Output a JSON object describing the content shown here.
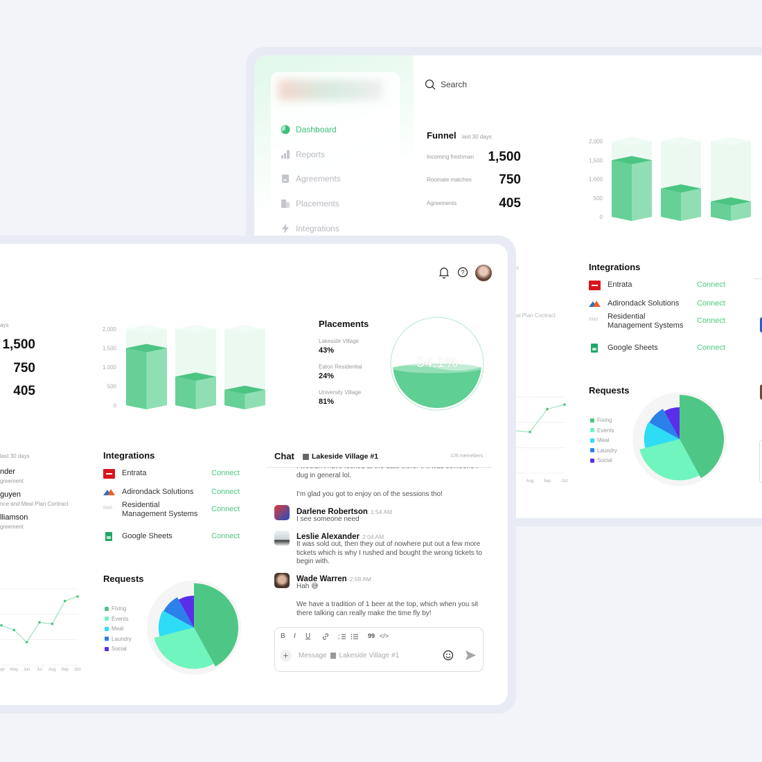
{
  "sidebar": {
    "items": [
      {
        "label": "Dashboard",
        "active": true
      },
      {
        "label": "Reports"
      },
      {
        "label": "Agreements"
      },
      {
        "label": "Placements"
      },
      {
        "label": "Integrations"
      }
    ]
  },
  "search": {
    "placeholder": "Search"
  },
  "funnel": {
    "title": "Funnel",
    "subtitle": "last 30 days",
    "subtitle_fragment": "ays",
    "rows": [
      {
        "label": "Incoming freshman",
        "value": "1,500"
      },
      {
        "label": "Roomate matches",
        "value": "750"
      },
      {
        "label": "Agreements",
        "value": "405"
      }
    ]
  },
  "recent": {
    "subtitle_fragment": "last 30 days",
    "rows": [
      {
        "name_fragment": "nder",
        "detail_fragment": "greement"
      },
      {
        "name_fragment": "guyen",
        "detail_fragment": "nce and Meal Plan Contract"
      },
      {
        "name_fragment": "lliamson",
        "detail_fragment": "greement"
      }
    ],
    "back_fragment_1": "s",
    "back_fragment_2": "al Plan Contract"
  },
  "placements": {
    "title": "Placements",
    "items": [
      {
        "label": "Lakeside Village",
        "value": "43%"
      },
      {
        "label": "Eaton Residential",
        "value": "24%"
      },
      {
        "label": "University Village",
        "value": "81%"
      }
    ],
    "gauge_label": "54.1%",
    "gauge_value": 54.1
  },
  "integrations": {
    "title": "Integrations",
    "items": [
      {
        "name": "Entrata",
        "icon": "entrata-logo",
        "action": "Connect"
      },
      {
        "name": "Adirondack Solutions",
        "icon": "adirondack-logo",
        "action": "Connect"
      },
      {
        "name_line1": "Residential",
        "name_line2": "Management Systems",
        "icon": "rms-logo",
        "icon_text": "RMS",
        "action": "Connect"
      },
      {
        "name": "Google Sheets",
        "icon": "google-sheets-logo",
        "action": "Connect"
      }
    ]
  },
  "requests": {
    "title": "Requests"
  },
  "chat": {
    "title": "Chat",
    "channel": "Lakeside Village #1",
    "members": "126 memebers",
    "messages": [
      {
        "text": "I wouldn't have looked at the date either if it was someone I dug in general lol."
      },
      {
        "text": "I'm glad you got to enjoy on of the sessions tho!"
      },
      {
        "author": "Darlene Robertson",
        "time": "1:54 AM",
        "text": "I see someone need"
      },
      {
        "author": "Leslie Alexander",
        "time": "2:04 AM",
        "text": "It was sold out, then they out of nowhere put out a few more tickets which is why I rushed and bought the wrong tickets to begin with."
      },
      {
        "author": "Wade Warren",
        "time": "2:58 AM",
        "text": "Hah 😅"
      },
      {
        "text": "We have a tradition of 1 beer at the top, which when you sit there talking can really make the time fly by!"
      }
    ],
    "composer": {
      "placeholder": "Message",
      "channel": "Lakeside Village #1",
      "toolbar": [
        "B",
        "I",
        "U",
        "link",
        "ordered-list",
        "bullet-list",
        "quote",
        "code"
      ],
      "quote_glyph": "99",
      "code_glyph": "</>"
    }
  },
  "colors": {
    "accent": "#3dbd7a",
    "bar_fill": "#5fcf94",
    "bar_ghost": "#e6f6ed",
    "connect": "#4cc97f"
  },
  "chart_data": [
    {
      "type": "bar",
      "categories": [
        "Incoming freshman",
        "Roomate matches",
        "Agreements"
      ],
      "values": [
        1500,
        750,
        405
      ],
      "ylim": [
        0,
        2000
      ],
      "yticks": [
        "2,000",
        "1,500",
        "1,000",
        "500",
        "0"
      ]
    },
    {
      "type": "pie",
      "title": "Requests",
      "categories": [
        "Fixing",
        "Events",
        "Meal",
        "Laundry",
        "Social"
      ],
      "values": [
        42,
        29,
        12,
        9,
        8
      ],
      "colors": [
        "#4ec786",
        "#6ff5bd",
        "#2fdcf5",
        "#2b80ea",
        "#5a2ee8"
      ],
      "legend": "left"
    },
    {
      "type": "line",
      "categories": [
        "Apr",
        "May",
        "Jun",
        "Jul",
        "Aug",
        "Sep",
        "Oct"
      ],
      "values": [
        52,
        46,
        30,
        56,
        54,
        84,
        90
      ],
      "grid": true
    },
    {
      "type": "gauge",
      "value": 54.1,
      "label": "54.1%"
    }
  ]
}
